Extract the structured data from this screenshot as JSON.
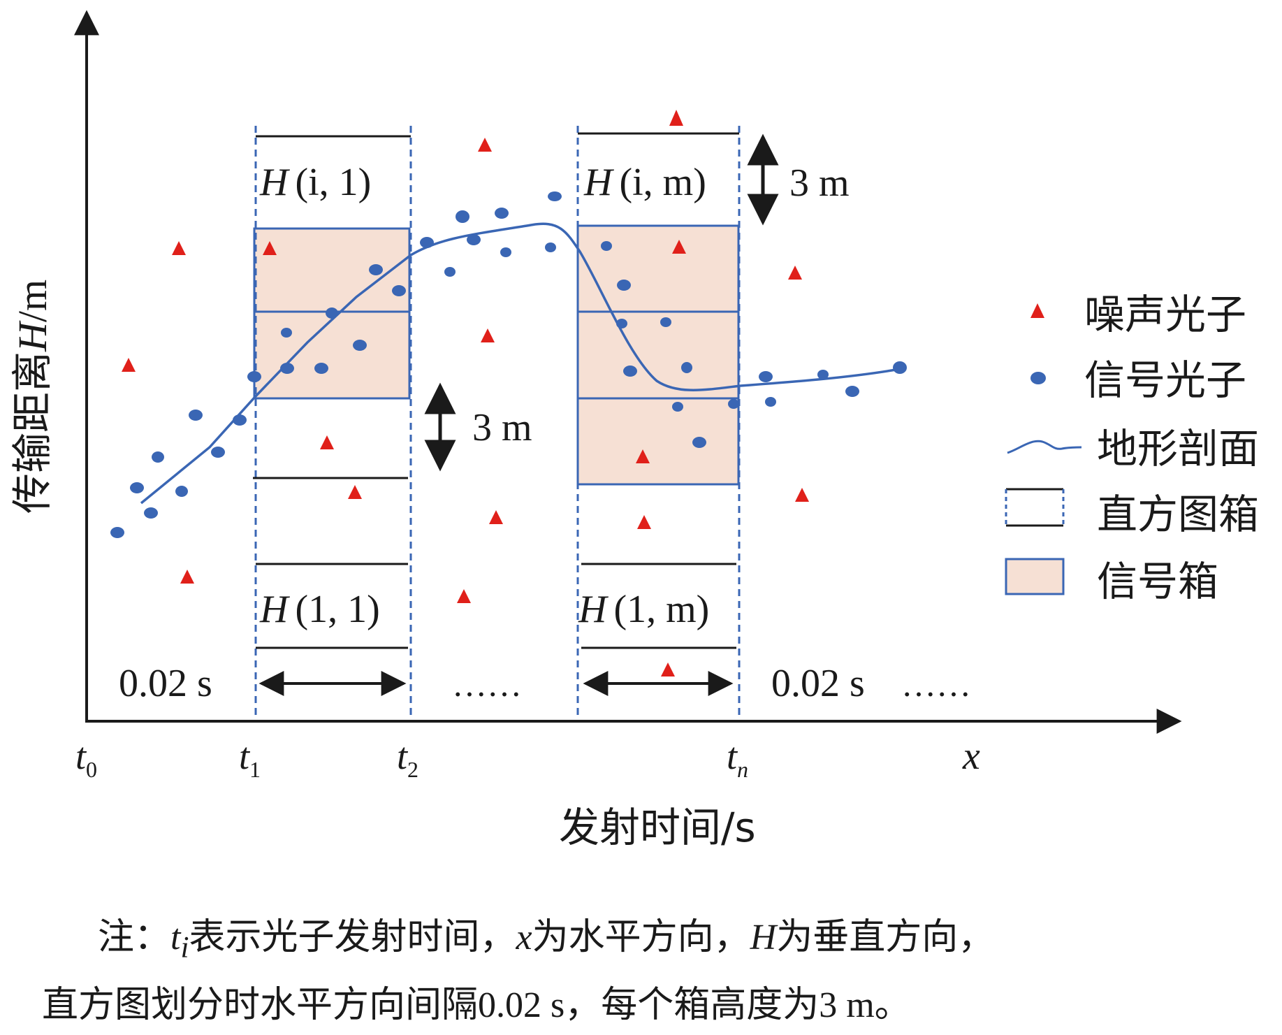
{
  "axes": {
    "y_label_cjk": "传输距离",
    "y_label_var": "H",
    "y_label_unit": "/m",
    "x_label": "发射时间/s",
    "x_end_label": "x",
    "ticks": [
      {
        "base": "t",
        "sub": "0"
      },
      {
        "base": "t",
        "sub": "1"
      },
      {
        "base": "t",
        "sub": "2"
      },
      {
        "base": "t",
        "sub": "n"
      }
    ]
  },
  "boxes": {
    "h_i_1": {
      "var": "H",
      "args": "(i, 1)"
    },
    "h_i_m": {
      "var": "H",
      "args": "(i, m)"
    },
    "h_1_1": {
      "var": "H",
      "args": "(1, 1)"
    },
    "h_1_m": {
      "var": "H",
      "args": "(1, m)"
    }
  },
  "annotations": {
    "height_top": "3 m",
    "height_mid": "3 m",
    "interval_left": "0.02 s",
    "interval_right": "0.02 s",
    "dots_mid": "……",
    "dots_right": "……"
  },
  "legend": {
    "noise": "噪声光子",
    "signal": "信号光子",
    "terrain": "地形剖面",
    "histogram": "直方图箱",
    "signal_box": "信号箱"
  },
  "note": {
    "prefix": "注：",
    "t_base": "t",
    "t_sub": "i",
    "part1": "表示光子发射时间，",
    "x_var": "x",
    "part2": "为水平方向，",
    "h_var": "H",
    "part3": "为垂直方向，",
    "line2": "直方图划分时水平方向间隔0.02 s，每个箱高度为3 m。"
  },
  "colors": {
    "noise": "#e0201a",
    "signal": "#3a66b4",
    "signal_box_fill": "#f6e0d4",
    "axis": "#1a1a1a"
  }
}
